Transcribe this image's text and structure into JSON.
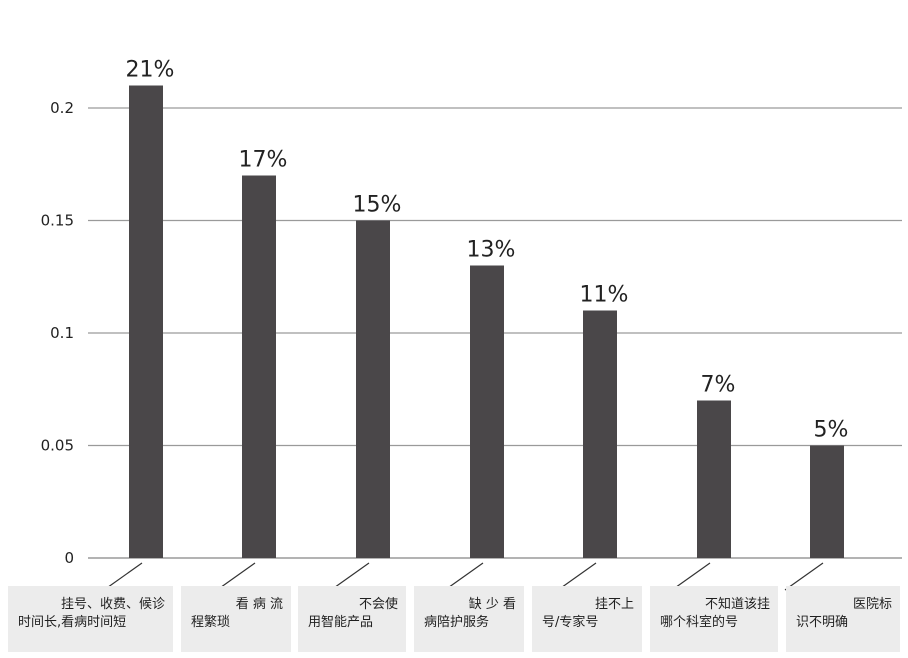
{
  "chart_data": {
    "type": "bar",
    "categories": [
      [
        "挂号、收费、候诊",
        "时间长,看病时间短"
      ],
      [
        "看 病 流",
        "程繁琐"
      ],
      [
        "不会使",
        "用智能产品"
      ],
      [
        "缺 少 看",
        "病陪护服务"
      ],
      [
        "挂不上",
        "号/专家号"
      ],
      [
        "不知道该挂",
        "哪个科室的号"
      ],
      [
        "医院标",
        "识不明确"
      ]
    ],
    "values": [
      0.21,
      0.17,
      0.15,
      0.13,
      0.11,
      0.07,
      0.05
    ],
    "data_labels": [
      "21%",
      "17%",
      "15%",
      "13%",
      "11%",
      "7%",
      "5%"
    ],
    "ylim": [
      0,
      0.2
    ],
    "yticks": [
      "0",
      "0.05",
      "0.1",
      "0.15",
      "0.2"
    ],
    "ytick_values": [
      0,
      0.05,
      0.1,
      0.15,
      0.2
    ],
    "grid": true,
    "bar_color": "#4a4749",
    "grid_color": "#9a9a9a",
    "category_box_color": "#ececec"
  }
}
